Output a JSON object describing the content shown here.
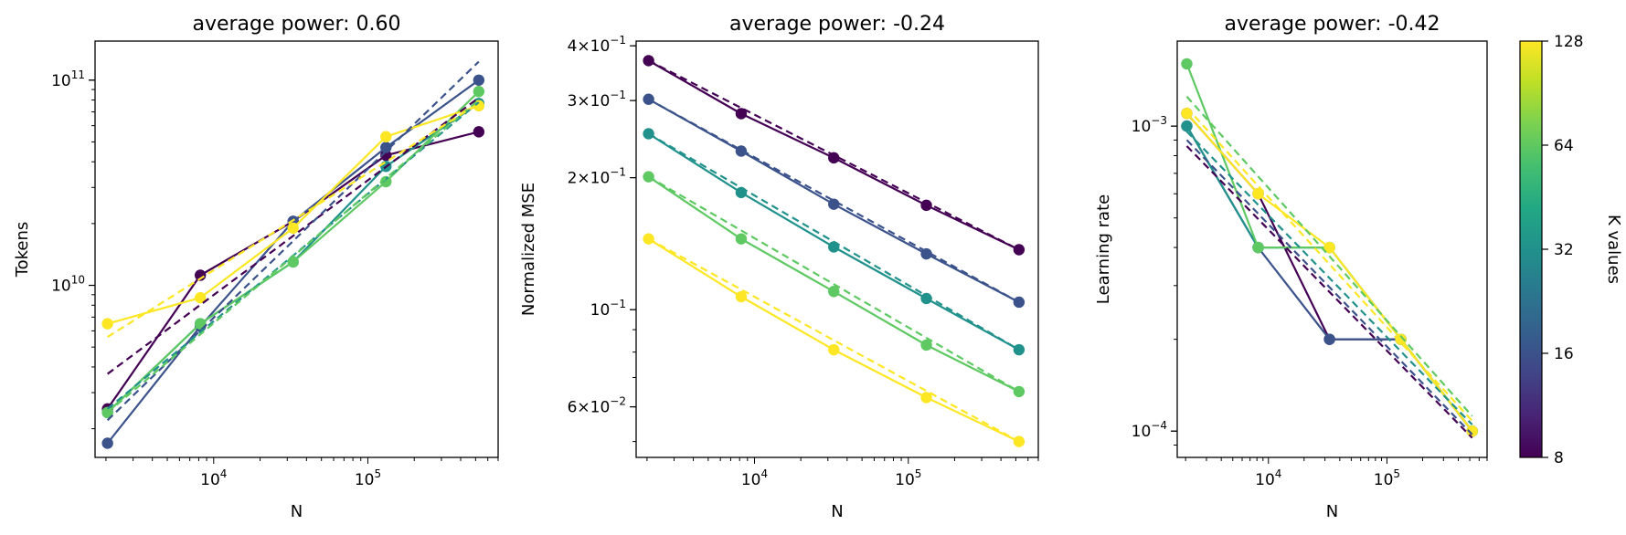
{
  "colorbar": {
    "label": "K values",
    "tick_labels": [
      "8",
      "16",
      "32",
      "64",
      "128"
    ],
    "k_range": [
      8,
      128
    ],
    "colormap": "viridis"
  },
  "chart_data": [
    {
      "type": "line",
      "title": "average power: 0.60",
      "xlabel": "N",
      "ylabel": "Tokens",
      "xscale": "log",
      "yscale": "log",
      "xlim": [
        1700,
        700000
      ],
      "ylim": [
        1450000000.0,
        155000000000.0
      ],
      "xticks": [
        {
          "value": 10000,
          "base": "10",
          "exp": "4"
        },
        {
          "value": 100000,
          "base": "10",
          "exp": "5"
        }
      ],
      "yticks": [
        {
          "value": 10000000000.0,
          "base": "10",
          "exp": "10"
        },
        {
          "value": 100000000000.0,
          "base": "10",
          "exp": "11"
        }
      ],
      "x": [
        2048,
        8192,
        32768,
        131072,
        524288
      ],
      "series": [
        {
          "k": 8,
          "color": "#440154",
          "values": [
            2500000000.0,
            11200000000.0,
            20500000000.0,
            43000000000.0,
            56000000000.0
          ],
          "fit": [
            3700000000.0,
            82000000000.0
          ]
        },
        {
          "k": 16,
          "color": "#3b528b",
          "values": [
            1700000000.0,
            6300000000.0,
            20500000000.0,
            47000000000.0,
            100000000000.0
          ],
          "fit": [
            2200000000.0,
            123000000000.0
          ]
        },
        {
          "k": 32,
          "color": "#21918c",
          "values": [
            2400000000.0,
            6500000000.0,
            13000000000.0,
            38000000000.0,
            77000000000.0
          ],
          "fit": [
            2500000000.0,
            78000000000.0
          ]
        },
        {
          "k": 64,
          "color": "#5ec962",
          "values": [
            2400000000.0,
            6500000000.0,
            13000000000.0,
            32000000000.0,
            88000000000.0
          ],
          "fit": [
            2400000000.0,
            80000000000.0
          ]
        },
        {
          "k": 128,
          "color": "#fde725",
          "values": [
            6500000000.0,
            8700000000.0,
            19000000000.0,
            53000000000.0,
            75000000000.0
          ],
          "fit": [
            5600000000.0,
            77000000000.0
          ]
        }
      ]
    },
    {
      "type": "line",
      "title": "average power: -0.24",
      "xlabel": "N",
      "ylabel": "Normalized MSE",
      "xscale": "log",
      "yscale": "log",
      "xlim": [
        1700,
        700000
      ],
      "ylim": [
        0.046,
        0.41
      ],
      "xticks": [
        {
          "value": 10000,
          "base": "10",
          "exp": "4"
        },
        {
          "value": 100000,
          "base": "10",
          "exp": "5"
        }
      ],
      "yticks": [
        {
          "value": 0.4,
          "base": "4×10",
          "exp": "−1"
        },
        {
          "value": 0.3,
          "base": "3×10",
          "exp": "−1"
        },
        {
          "value": 0.2,
          "base": "2×10",
          "exp": "−1"
        },
        {
          "value": 0.1,
          "base": "10",
          "exp": "−1"
        },
        {
          "value": 0.06,
          "base": "6×10",
          "exp": "−2"
        }
      ],
      "x": [
        2048,
        8192,
        32768,
        131072,
        524288
      ],
      "series": [
        {
          "k": 8,
          "color": "#440154",
          "values": [
            0.37,
            0.28,
            0.222,
            0.173,
            0.137
          ],
          "fit": [
            0.37,
            0.137
          ]
        },
        {
          "k": 16,
          "color": "#3b528b",
          "values": [
            0.302,
            0.23,
            0.174,
            0.134,
            0.104
          ],
          "fit": [
            0.302,
            0.104
          ]
        },
        {
          "k": 32,
          "color": "#21918c",
          "values": [
            0.252,
            0.185,
            0.139,
            0.106,
            0.081
          ],
          "fit": [
            0.252,
            0.081
          ]
        },
        {
          "k": 64,
          "color": "#5ec962",
          "values": [
            0.201,
            0.145,
            0.11,
            0.083,
            0.065
          ],
          "fit": [
            0.201,
            0.065
          ]
        },
        {
          "k": 128,
          "color": "#fde725",
          "values": [
            0.145,
            0.107,
            0.081,
            0.063,
            0.05
          ],
          "fit": [
            0.145,
            0.05
          ]
        }
      ]
    },
    {
      "type": "line",
      "title": "average power: -0.42",
      "xlabel": "N",
      "ylabel": "Learning rate",
      "xscale": "log",
      "yscale": "log",
      "xlim": [
        1700,
        700000
      ],
      "ylim": [
        8.2e-05,
        0.0019
      ],
      "xticks": [
        {
          "value": 10000,
          "base": "10",
          "exp": "4"
        },
        {
          "value": 100000,
          "base": "10",
          "exp": "5"
        }
      ],
      "yticks": [
        {
          "value": 0.001,
          "base": "10",
          "exp": "−3"
        },
        {
          "value": 0.0001,
          "base": "10",
          "exp": "−4"
        }
      ],
      "x": [
        2048,
        8192,
        32768,
        131072,
        524288
      ],
      "series": [
        {
          "k": 8,
          "color": "#440154",
          "values": [
            0.0011,
            0.0006,
            0.0002,
            0.0002,
            0.0001
          ],
          "fit": [
            0.00086,
            9.5e-05
          ]
        },
        {
          "k": 16,
          "color": "#3b528b",
          "values": [
            0.001,
            0.0004,
            0.0002,
            0.0002,
            0.0001
          ],
          "fit": [
            0.0009,
            9.75e-05
          ]
        },
        {
          "k": 32,
          "color": "#21918c",
          "values": [
            0.001,
            0.0004,
            0.0004,
            0.0002,
            0.0001
          ],
          "fit": [
            0.00096,
            0.000105
          ]
        },
        {
          "k": 64,
          "color": "#5ec962",
          "values": [
            0.0016,
            0.0004,
            0.0004,
            0.0002,
            0.0001
          ],
          "fit": [
            0.00125,
            0.000112
          ]
        },
        {
          "k": 128,
          "color": "#fde725",
          "values": [
            0.0011,
            0.0006,
            0.0004,
            0.0002,
            0.0001
          ],
          "fit": [
            0.00115,
            0.000108
          ]
        }
      ]
    }
  ]
}
